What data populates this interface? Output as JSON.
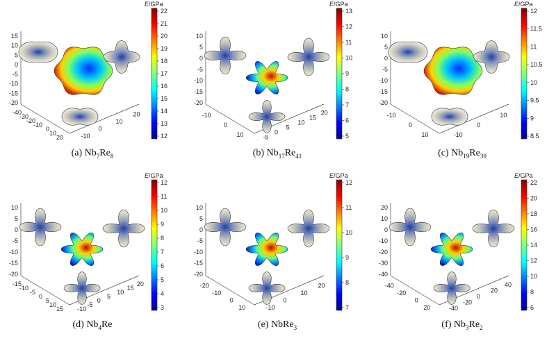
{
  "colorbar_unit": "GPa",
  "colorbar_symbol": "E",
  "colormap": [
    "#00008f",
    "#0000ff",
    "#0080ff",
    "#00ffff",
    "#80ff80",
    "#ffff00",
    "#ff8000",
    "#ff0000",
    "#800000"
  ],
  "panels": [
    {
      "id": "a",
      "label_prefix": "(a) ",
      "formula": [
        [
          "Nb",
          ""
        ],
        [
          "7",
          true
        ],
        [
          "Re",
          ""
        ],
        [
          "8",
          true
        ]
      ],
      "cbar_ticks": [
        "22",
        "21",
        "20",
        "19",
        "18",
        "17",
        "16",
        "15",
        "14",
        "13",
        "12"
      ],
      "z_ticks": [
        "15",
        "10",
        "5",
        "0",
        "-5",
        "-10",
        "-15",
        "-20"
      ],
      "x_ticks": [
        "-40",
        "-30",
        "-20",
        "-10",
        "0",
        "10",
        "20"
      ],
      "y_ticks": [
        "20",
        "10",
        "0",
        "-10"
      ]
    },
    {
      "id": "b",
      "label_prefix": "(b) ",
      "formula": [
        [
          "Nb",
          ""
        ],
        [
          "17",
          true
        ],
        [
          "Re",
          ""
        ],
        [
          "41",
          true
        ]
      ],
      "cbar_ticks": [
        "13",
        "12",
        "11",
        "10",
        "9",
        "8",
        "7",
        "6",
        "5"
      ],
      "z_ticks": [
        "10",
        "5",
        "0",
        "-5",
        "-10",
        "-15",
        "-20"
      ],
      "x_ticks": [
        "-10",
        "0",
        "10"
      ],
      "y_ticks": [
        "20",
        "15",
        "10",
        "5",
        "0",
        "-5"
      ]
    },
    {
      "id": "c",
      "label_prefix": "(c) ",
      "formula": [
        [
          "Nb",
          ""
        ],
        [
          "19",
          true
        ],
        [
          "Re",
          ""
        ],
        [
          "39",
          true
        ]
      ],
      "cbar_ticks": [
        "12",
        "11.5",
        "11",
        "10.5",
        "10",
        "9.5",
        "9",
        "8.5"
      ],
      "z_ticks": [
        "10",
        "5",
        "0",
        "-5",
        "-10",
        "-15",
        "-20"
      ],
      "x_ticks": [
        "-10",
        "0",
        "10"
      ],
      "y_ticks": [
        "10",
        "0",
        "-10"
      ]
    },
    {
      "id": "d",
      "label_prefix": "(d) ",
      "formula": [
        [
          "Nb",
          ""
        ],
        [
          "4",
          true
        ],
        [
          "Re",
          ""
        ]
      ],
      "cbar_ticks": [
        "12",
        "11",
        "10",
        "9",
        "8",
        "7",
        "6",
        "5",
        "4",
        "3"
      ],
      "z_ticks": [
        "10",
        "5",
        "0",
        "-5",
        "-10",
        "-15",
        "-20"
      ],
      "x_ticks": [
        "-15",
        "-10",
        "-5",
        "0",
        "5",
        "10",
        "15"
      ],
      "y_ticks": [
        "20",
        "15",
        "10",
        "5",
        "0",
        "-5",
        "-10"
      ]
    },
    {
      "id": "e",
      "label_prefix": "(e) ",
      "formula": [
        [
          "NbRe",
          ""
        ],
        [
          "3",
          true
        ]
      ],
      "cbar_ticks": [
        "12",
        "11",
        "10",
        "9",
        "8",
        "7"
      ],
      "z_ticks": [
        "10",
        "5",
        "0",
        "-5",
        "-10",
        "-15",
        "-20"
      ],
      "x_ticks": [
        "-20",
        "-10",
        "0",
        "10"
      ],
      "y_ticks": [
        "20",
        "10",
        "0",
        "-10"
      ]
    },
    {
      "id": "f",
      "label_prefix": "(f) ",
      "formula": [
        [
          "Nb",
          ""
        ],
        [
          "3",
          true
        ],
        [
          "Re",
          ""
        ],
        [
          "2",
          true
        ]
      ],
      "cbar_ticks": [
        "22",
        "20",
        "18",
        "16",
        "14",
        "12",
        "10",
        "8",
        "6"
      ],
      "z_ticks": [
        "20",
        "10",
        "0",
        "-10",
        "-20",
        "-30",
        "-40"
      ],
      "x_ticks": [
        "-40",
        "-20",
        "0",
        "20"
      ],
      "y_ticks": [
        "40",
        "20",
        "0",
        "-20",
        "-40"
      ]
    }
  ]
}
